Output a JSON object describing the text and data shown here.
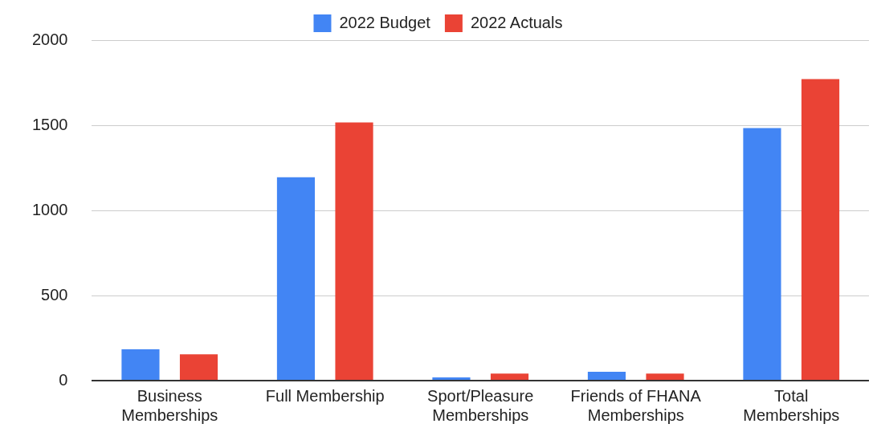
{
  "chart_data": {
    "type": "bar",
    "categories": [
      "Business Memberships",
      "Full Membership",
      "Sport/Pleasure Memberships",
      "Friends of FHANA Memberships",
      "Total Memberships"
    ],
    "series": [
      {
        "name": "2022 Budget",
        "color": "#4285f4",
        "values": [
          184,
          1195,
          19,
          52,
          1483
        ]
      },
      {
        "name": "2022 Actuals",
        "color": "#ea4335",
        "values": [
          154,
          1516,
          41,
          41,
          1771
        ]
      }
    ],
    "ylim": [
      0,
      2000
    ],
    "yticks": [
      0,
      500,
      1000,
      1500,
      2000
    ],
    "grid": "y",
    "legend": "top"
  }
}
